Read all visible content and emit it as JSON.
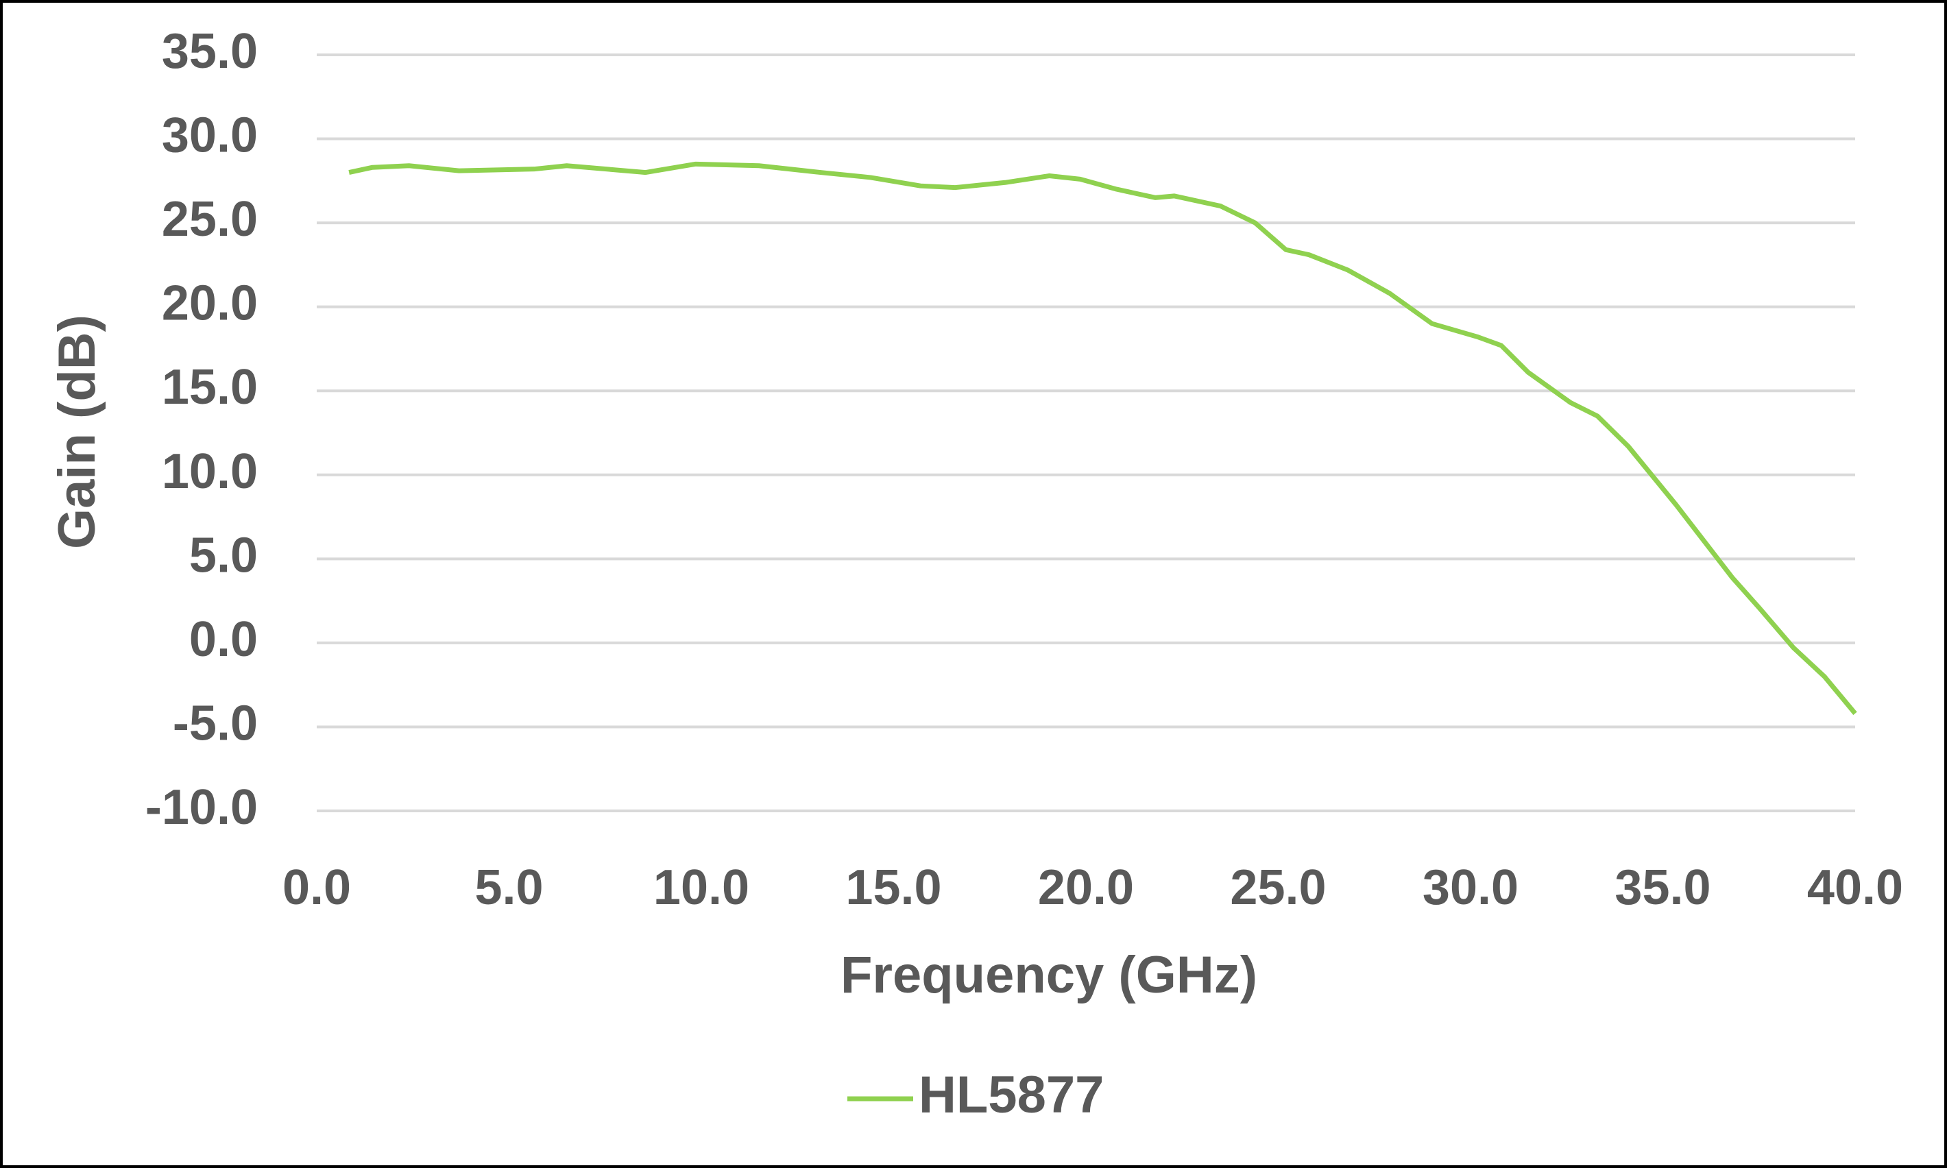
{
  "chart_data": {
    "type": "line",
    "x_label": "Frequency (GHz)",
    "y_label": "Gain (dB)",
    "x": [
      0.84,
      1.45,
      2.4,
      3.7,
      5.65,
      6.5,
      8.55,
      9.85,
      11.5,
      13.1,
      14.4,
      15.7,
      16.6,
      17.9,
      19.05,
      19.85,
      20.8,
      21.8,
      22.3,
      23.5,
      24.4,
      25.2,
      25.8,
      26.8,
      27.9,
      29.0,
      30.2,
      30.8,
      31.5,
      32.6,
      33.3,
      34.1,
      35.35,
      36.8,
      37.5,
      38.4,
      39.2,
      40.0
    ],
    "series": [
      {
        "name": "HL5877",
        "color": "#8fd14f",
        "values": [
          28.0,
          28.3,
          28.4,
          28.1,
          28.2,
          28.4,
          28.0,
          28.5,
          28.4,
          28.0,
          27.7,
          27.2,
          27.1,
          27.4,
          27.8,
          27.6,
          27.0,
          26.5,
          26.6,
          26.0,
          25.0,
          23.4,
          23.1,
          22.2,
          20.8,
          19.0,
          18.2,
          17.7,
          16.1,
          14.3,
          13.5,
          11.7,
          8.2,
          3.9,
          2.1,
          -0.3,
          -2.0,
          -4.2
        ]
      }
    ],
    "xlim": [
      0,
      40
    ],
    "xticks": [
      {
        "value": 0,
        "label": "0.0"
      },
      {
        "value": 5,
        "label": "5.0"
      },
      {
        "value": 10,
        "label": "10.0"
      },
      {
        "value": 15,
        "label": "15.0"
      },
      {
        "value": 20,
        "label": "20.0"
      },
      {
        "value": 25,
        "label": "25.0"
      },
      {
        "value": 30,
        "label": "30.0"
      },
      {
        "value": 35,
        "label": "35.0"
      },
      {
        "value": 40,
        "label": "40.0"
      }
    ],
    "ylim": [
      -10,
      35
    ],
    "yticks": [
      {
        "value": -10,
        "label": "-10.0"
      },
      {
        "value": -5,
        "label": "-5.0"
      },
      {
        "value": 0,
        "label": "0.0"
      },
      {
        "value": 5,
        "label": "5.0"
      },
      {
        "value": 10,
        "label": "10.0"
      },
      {
        "value": 15,
        "label": "15.0"
      },
      {
        "value": 20,
        "label": "20.0"
      },
      {
        "value": 25,
        "label": "25.0"
      },
      {
        "value": 30,
        "label": "30.0"
      },
      {
        "value": 35,
        "label": "35.0"
      }
    ],
    "grid": true,
    "legend": "bottom"
  }
}
